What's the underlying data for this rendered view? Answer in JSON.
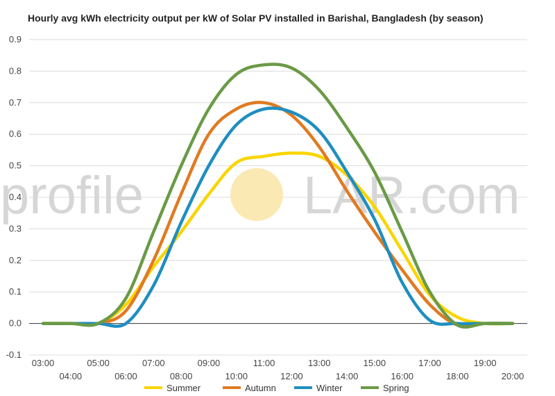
{
  "chart_data": {
    "type": "line",
    "title": "Hourly avg kWh electricity output per kW of Solar PV installed in Barishal, Bangladesh (by season)",
    "xlabel": "",
    "ylabel": "",
    "ylim": [
      -0.1,
      0.9
    ],
    "yticks": [
      "-0.1",
      "0.0",
      "0.1",
      "0.2",
      "0.3",
      "0.4",
      "0.5",
      "0.6",
      "0.7",
      "0.8",
      "0.9"
    ],
    "x": [
      "03:00",
      "04:00",
      "05:00",
      "06:00",
      "07:00",
      "08:00",
      "09:00",
      "10:00",
      "11:00",
      "12:00",
      "13:00",
      "14:00",
      "15:00",
      "16:00",
      "17:00",
      "18:00",
      "19:00",
      "20:00"
    ],
    "grid": true,
    "legend": "bottom",
    "series": [
      {
        "name": "Summer",
        "color": "#f9d500",
        "values": [
          0,
          0,
          0,
          0.06,
          0.18,
          0.29,
          0.41,
          0.51,
          0.53,
          0.54,
          0.53,
          0.47,
          0.37,
          0.23,
          0.09,
          0.02,
          0,
          0
        ]
      },
      {
        "name": "Autumn",
        "color": "#e07a22",
        "values": [
          0,
          0,
          0,
          0.04,
          0.2,
          0.41,
          0.6,
          0.68,
          0.7,
          0.66,
          0.56,
          0.42,
          0.29,
          0.17,
          0.06,
          -0.005,
          0,
          0
        ]
      },
      {
        "name": "Winter",
        "color": "#1f8ec0",
        "values": [
          0,
          0,
          0,
          0,
          0.12,
          0.32,
          0.5,
          0.63,
          0.68,
          0.67,
          0.61,
          0.48,
          0.33,
          0.13,
          0.01,
          0,
          0,
          0
        ]
      },
      {
        "name": "Spring",
        "color": "#6b9a46",
        "values": [
          0,
          0,
          0,
          0.08,
          0.29,
          0.5,
          0.68,
          0.79,
          0.82,
          0.81,
          0.74,
          0.62,
          0.48,
          0.29,
          0.1,
          -0.005,
          0,
          0
        ]
      }
    ]
  },
  "watermark": {
    "part1": "profile",
    "part2": "S",
    "part3": "LAR.com",
    "sun_color": "#fbe9b4"
  }
}
